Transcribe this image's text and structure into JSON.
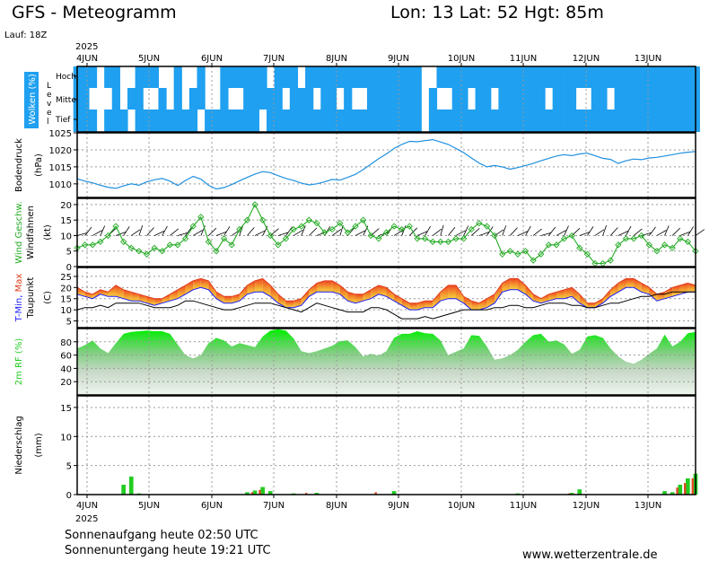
{
  "header": {
    "title": "GFS - Meteogramm",
    "location": "Lon: 13 Lat: 52 Hgt: 85m",
    "run": "Lauf: 18Z",
    "year": "2025"
  },
  "footer": {
    "sunrise": "Sonnenaufgang heute 02:50 UTC",
    "sunset": "Sonnenuntergang heute 19:21 UTC",
    "site": "www.wetterzentrale.de"
  },
  "colors": {
    "cloud": "#1fa0f0",
    "pressure": "#1e90e0",
    "wind_speed": "#22aa22",
    "barb": "#000000",
    "tmin": "#1a1aff",
    "tmax": "#e03a1a",
    "dewpoint": "#000000",
    "rh": "#22cc22",
    "precip_rain": "#22cc22",
    "precip_conv": "#e04a20"
  },
  "chart_data": [
    {
      "type": "heatmap",
      "panel": "clouds",
      "ylabel": "Wolken (%)",
      "level_label": "Level",
      "levels": [
        "Hoch",
        "Mittel",
        "Tief"
      ],
      "x_ticks": [
        "4JUN",
        "5JUN",
        "6JUN",
        "7JUN",
        "8JUN",
        "9JUN",
        "10JUN",
        "11JUN",
        "12JUN",
        "13JUN"
      ],
      "time_step_hours": 3,
      "hoch": [
        1,
        1,
        1,
        0,
        1,
        1,
        0,
        0,
        1,
        1,
        1,
        0,
        0,
        1,
        0,
        0,
        1,
        0,
        0,
        1,
        1,
        1,
        1,
        1,
        1,
        0,
        1,
        1,
        1,
        0,
        1,
        1,
        1,
        1,
        1,
        1,
        1,
        1,
        1,
        1,
        1,
        1,
        1,
        1,
        1,
        0,
        0,
        1,
        1,
        1,
        1,
        1,
        1,
        1,
        1,
        1,
        1,
        1,
        1,
        1,
        1,
        1,
        1,
        1,
        1,
        1,
        1,
        1,
        1,
        1,
        1,
        1,
        1,
        1,
        1,
        1,
        1,
        1,
        1,
        1,
        1
      ],
      "mittel": [
        1,
        1,
        0,
        0,
        0,
        1,
        0,
        1,
        1,
        0,
        0,
        1,
        0,
        1,
        0,
        1,
        1,
        0,
        0,
        1,
        0,
        0,
        1,
        1,
        1,
        1,
        1,
        0,
        1,
        1,
        1,
        0,
        1,
        1,
        0,
        1,
        0,
        0,
        1,
        1,
        1,
        1,
        1,
        1,
        1,
        0,
        1,
        0,
        0,
        1,
        1,
        0,
        1,
        1,
        0,
        1,
        1,
        1,
        1,
        1,
        1,
        0,
        1,
        1,
        1,
        0,
        0,
        1,
        1,
        0,
        1,
        1,
        1,
        1,
        1,
        1,
        1,
        1,
        1,
        1,
        1
      ],
      "tief": [
        1,
        1,
        1,
        0,
        1,
        1,
        1,
        0,
        1,
        1,
        1,
        1,
        1,
        1,
        1,
        1,
        0,
        1,
        1,
        1,
        1,
        1,
        1,
        1,
        0,
        1,
        1,
        1,
        1,
        1,
        1,
        1,
        1,
        1,
        1,
        1,
        1,
        1,
        1,
        1,
        1,
        1,
        1,
        1,
        1,
        0,
        1,
        1,
        1,
        1,
        1,
        1,
        1,
        1,
        1,
        1,
        1,
        1,
        1,
        1,
        1,
        1,
        1,
        1,
        1,
        1,
        1,
        1,
        1,
        1,
        1,
        1,
        1,
        1,
        1,
        1,
        1,
        1,
        1,
        1,
        1
      ]
    },
    {
      "type": "line",
      "panel": "pressure",
      "ylabel": "Bodendruck",
      "yunit": "(hPa)",
      "ylim": [
        1006,
        1025
      ],
      "yticks": [
        1010,
        1015,
        1020,
        1025
      ],
      "series": [
        {
          "values": [
            1011.5,
            1010.8,
            1010.3,
            1009.6,
            1009.0,
            1008.7,
            1009.4,
            1010.0,
            1009.6,
            1010.6,
            1011.2,
            1011.6,
            1010.8,
            1009.5,
            1011.0,
            1012.2,
            1011.4,
            1009.6,
            1008.5,
            1008.9,
            1009.8,
            1010.9,
            1011.9,
            1012.9,
            1013.6,
            1013.3,
            1012.4,
            1011.6,
            1011.0,
            1010.2,
            1009.7,
            1010.0,
            1010.6,
            1011.3,
            1011.1,
            1011.9,
            1012.8,
            1014.2,
            1015.8,
            1017.4,
            1018.8,
            1020.4,
            1021.6,
            1022.5,
            1022.4,
            1022.7,
            1023.0,
            1022.3,
            1021.6,
            1020.4,
            1019.2,
            1017.6,
            1016.1,
            1015.0,
            1015.4,
            1015.0,
            1014.3,
            1014.8,
            1015.4,
            1016.0,
            1016.8,
            1017.5,
            1018.2,
            1018.6,
            1018.3,
            1018.8,
            1019.0,
            1018.3,
            1017.5,
            1017.2,
            1016.0,
            1016.8,
            1017.3,
            1017.1,
            1017.6,
            1017.8,
            1018.2,
            1018.6,
            1019.0,
            1019.3,
            1019.5
          ]
        }
      ]
    },
    {
      "type": "line",
      "panel": "wind",
      "ylabel": "Wind Geschw.",
      "ylabel2": "Windfahnen",
      "yunit": "(kt)",
      "ylim": [
        0,
        22
      ],
      "yticks": [
        0,
        5,
        10,
        15,
        20
      ],
      "series": [
        {
          "values": [
            6,
            7,
            7,
            8,
            10,
            13,
            8,
            6,
            5,
            4,
            6,
            5,
            7,
            7,
            9,
            13,
            16,
            8,
            5,
            9,
            7,
            12,
            15,
            20,
            15,
            10,
            7,
            9,
            12,
            13,
            15,
            14,
            11,
            12,
            14,
            11,
            13,
            15,
            10,
            9,
            11,
            13,
            12,
            13,
            9,
            9,
            8,
            8,
            8,
            9,
            9,
            12,
            14,
            13,
            10,
            4,
            5,
            4,
            5,
            2,
            4,
            7,
            7,
            9,
            10,
            6,
            4,
            1,
            1,
            2,
            7,
            9,
            9,
            10,
            7,
            5,
            7,
            6,
            9,
            8,
            5
          ]
        }
      ]
    },
    {
      "type": "area",
      "panel": "temperature",
      "ylabel": "T-Min, Max",
      "ylabel2": "Taupunkt",
      "yunit": "(C)",
      "ylim": [
        2,
        29
      ],
      "yticks": [
        5,
        10,
        15,
        20,
        25
      ],
      "series": [
        {
          "name": "T-Min",
          "values": [
            17,
            16,
            15,
            17,
            16,
            16,
            15,
            14,
            14,
            13,
            12,
            13,
            14,
            15,
            17,
            19,
            20,
            19,
            15,
            13,
            13,
            14,
            17,
            18,
            18,
            16,
            13,
            11,
            11,
            12,
            16,
            18,
            18,
            18,
            17,
            14,
            13,
            14,
            15,
            17,
            16,
            14,
            12,
            10,
            10,
            11,
            11,
            14,
            15,
            15,
            13,
            10,
            10,
            11,
            13,
            18,
            19,
            19,
            17,
            14,
            13,
            14,
            15,
            15,
            16,
            13,
            11,
            11,
            13,
            16,
            18,
            20,
            20,
            18,
            17,
            14,
            15,
            16,
            17,
            18,
            18
          ]
        },
        {
          "name": "T-Max",
          "values": [
            20,
            18,
            17,
            19,
            18,
            21,
            19,
            18,
            17,
            16,
            15,
            15,
            17,
            19,
            21,
            23,
            24,
            23,
            18,
            16,
            16,
            17,
            21,
            23,
            24,
            21,
            17,
            14,
            14,
            15,
            19,
            22,
            23,
            23,
            21,
            18,
            17,
            17,
            19,
            21,
            20,
            17,
            15,
            13,
            13,
            14,
            14,
            18,
            21,
            21,
            16,
            14,
            13,
            15,
            17,
            22,
            24,
            24,
            21,
            17,
            15,
            17,
            18,
            19,
            20,
            17,
            13,
            13,
            15,
            19,
            22,
            24,
            24,
            22,
            20,
            17,
            18,
            20,
            21,
            22,
            21
          ]
        },
        {
          "name": "Taupunkt",
          "values": [
            10,
            11,
            11,
            12,
            11,
            13,
            13,
            13,
            13,
            12,
            11,
            11,
            11,
            12,
            14,
            14,
            13,
            12,
            11,
            10,
            10,
            11,
            12,
            13,
            13,
            13,
            12,
            11,
            10,
            9,
            11,
            13,
            12,
            11,
            10,
            9,
            9,
            9,
            11,
            11,
            10,
            8,
            6,
            6,
            6,
            7,
            6,
            7,
            8,
            9,
            10,
            10,
            10,
            10,
            11,
            11,
            12,
            12,
            11,
            11,
            12,
            13,
            13,
            13,
            12,
            12,
            11,
            11,
            12,
            13,
            13,
            14,
            15,
            16,
            16,
            17,
            17,
            18,
            18,
            18,
            18
          ]
        }
      ]
    },
    {
      "type": "area",
      "panel": "humidity",
      "ylabel": "2m RF (%)",
      "ylim": [
        0,
        100
      ],
      "yticks": [
        20,
        40,
        60,
        80
      ],
      "series": [
        {
          "values": [
            70,
            75,
            82,
            70,
            63,
            78,
            92,
            95,
            96,
            97,
            96,
            96,
            92,
            76,
            60,
            55,
            60,
            78,
            86,
            82,
            73,
            78,
            75,
            72,
            88,
            97,
            99,
            97,
            85,
            66,
            63,
            66,
            70,
            74,
            81,
            82,
            72,
            58,
            62,
            59,
            66,
            86,
            92,
            92,
            96,
            93,
            92,
            82,
            60,
            65,
            70,
            90,
            89,
            73,
            53,
            55,
            60,
            68,
            80,
            90,
            92,
            80,
            82,
            76,
            62,
            68,
            88,
            90,
            86,
            70,
            58,
            50,
            47,
            53,
            62,
            70,
            91,
            73,
            80,
            93,
            95
          ]
        }
      ]
    },
    {
      "type": "bar",
      "panel": "precip",
      "ylabel": "Niederschlag",
      "yunit": "(mm)",
      "ylim": [
        0,
        17
      ],
      "yticks": [
        0,
        5,
        10,
        15
      ],
      "values": [
        0,
        0,
        0,
        0,
        0,
        0,
        1.7,
        3.1,
        0.2,
        0,
        0,
        0,
        0,
        0,
        0,
        0,
        0,
        0,
        0,
        0,
        0,
        0,
        0.4,
        0.7,
        1.3,
        0.6,
        0.1,
        0,
        0.2,
        0,
        0,
        0.3,
        0,
        0,
        0,
        0,
        0,
        0,
        0,
        0,
        0,
        0.6,
        0,
        0,
        0,
        0,
        0,
        0,
        0,
        0,
        0,
        0,
        0,
        0,
        0,
        0,
        0,
        0.2,
        0,
        0,
        0,
        0,
        0,
        0,
        0.3,
        0.9,
        0,
        0,
        0,
        0,
        0,
        0,
        0,
        0,
        0,
        0,
        0.6,
        0.4,
        1.7,
        2.8,
        3.6
      ],
      "conv": [
        0,
        0,
        0,
        0,
        0,
        0,
        0,
        0,
        0,
        0,
        0,
        0,
        0,
        0,
        0,
        0,
        0,
        0,
        0,
        0,
        0,
        0,
        0,
        0.4,
        0.8,
        0,
        0,
        0,
        0,
        0,
        0.3,
        0,
        0,
        0,
        0,
        0,
        0,
        0,
        0,
        0.4,
        0,
        0,
        0,
        0,
        0,
        0,
        0,
        0,
        0,
        0,
        0,
        0,
        0,
        0,
        0,
        0,
        0,
        0,
        0,
        0,
        0,
        0,
        0,
        0,
        0.2,
        0,
        0,
        0,
        0,
        0,
        0,
        0,
        0,
        0,
        0,
        0,
        0,
        0,
        1.2,
        2.0,
        2.8
      ]
    }
  ],
  "x_ticks": [
    "4JUN",
    "5JUN",
    "6JUN",
    "7JUN",
    "8JUN",
    "9JUN",
    "10JUN",
    "11JUN",
    "12JUN",
    "13JUN"
  ]
}
